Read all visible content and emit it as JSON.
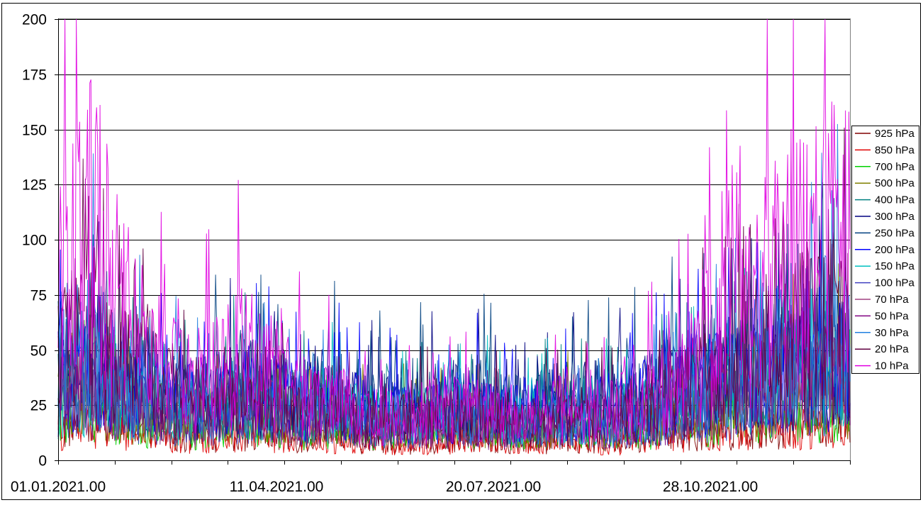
{
  "chart_data": {
    "type": "line",
    "title": "",
    "xlabel": "",
    "ylabel": "",
    "ylim": [
      0,
      200
    ],
    "yticks": [
      0,
      25,
      50,
      75,
      100,
      125,
      150,
      175,
      200
    ],
    "xlim": [
      "01.01.2021.00",
      "31.12.2021.18"
    ],
    "xtick_labels": [
      "01.01.2021.00",
      "11.04.2021.00",
      "20.07.2021.00",
      "28.10.2021.00"
    ],
    "grid": "horizontal",
    "legend_position": "right",
    "x": [
      "01.01.2021.00",
      "15.01.2021.00",
      "29.01.2021.00",
      "12.02.2021.00",
      "26.02.2021.00",
      "12.03.2021.00",
      "26.03.2021.00",
      "09.04.2021.00",
      "23.04.2021.00",
      "07.05.2021.00",
      "21.05.2021.00",
      "04.06.2021.00",
      "18.06.2021.00",
      "02.07.2021.00",
      "16.07.2021.00",
      "30.07.2021.00",
      "13.08.2021.00",
      "27.08.2021.00",
      "10.09.2021.00",
      "24.09.2021.00",
      "08.10.2021.00",
      "22.10.2021.00",
      "05.11.2021.00",
      "19.11.2021.00",
      "03.12.2021.00",
      "17.12.2021.00",
      "31.12.2021.00"
    ],
    "series": [
      {
        "name": "925 hPa",
        "color": "#800000",
        "values": [
          15,
          18,
          14,
          12,
          10,
          11,
          13,
          12,
          10,
          11,
          9,
          8,
          9,
          10,
          9,
          8,
          9,
          10,
          9,
          10,
          12,
          13,
          14,
          15,
          16,
          17,
          18
        ]
      },
      {
        "name": "850 hPa",
        "color": "#e00000",
        "values": [
          12,
          16,
          13,
          11,
          9,
          10,
          12,
          11,
          9,
          10,
          8,
          8,
          8,
          9,
          8,
          8,
          8,
          9,
          8,
          9,
          11,
          12,
          13,
          14,
          15,
          16,
          17
        ]
      },
      {
        "name": "700 hPa",
        "color": "#00d000",
        "values": [
          20,
          24,
          20,
          18,
          15,
          16,
          19,
          17,
          15,
          16,
          14,
          13,
          14,
          15,
          14,
          13,
          14,
          15,
          14,
          15,
          17,
          19,
          21,
          22,
          24,
          25,
          26
        ]
      },
      {
        "name": "500 hPa",
        "color": "#808000",
        "values": [
          26,
          30,
          25,
          22,
          19,
          20,
          24,
          21,
          19,
          20,
          17,
          16,
          17,
          19,
          18,
          16,
          17,
          19,
          18,
          19,
          22,
          24,
          27,
          28,
          30,
          32,
          33
        ]
      },
      {
        "name": "400 hPa",
        "color": "#008080",
        "values": [
          32,
          36,
          30,
          27,
          23,
          25,
          29,
          26,
          23,
          25,
          21,
          20,
          21,
          23,
          22,
          20,
          21,
          23,
          22,
          24,
          27,
          30,
          33,
          35,
          37,
          39,
          40
        ]
      },
      {
        "name": "300 hPa",
        "color": "#000080",
        "values": [
          36,
          42,
          35,
          31,
          27,
          29,
          33,
          30,
          27,
          28,
          24,
          23,
          24,
          27,
          25,
          23,
          24,
          27,
          25,
          27,
          31,
          34,
          38,
          40,
          42,
          44,
          45
        ]
      },
      {
        "name": "250 hPa",
        "color": "#004080",
        "values": [
          38,
          44,
          37,
          33,
          28,
          30,
          35,
          32,
          28,
          30,
          26,
          24,
          26,
          28,
          27,
          24,
          26,
          28,
          27,
          29,
          33,
          36,
          40,
          42,
          44,
          46,
          47
        ]
      },
      {
        "name": "200 hPa",
        "color": "#0000ff",
        "values": [
          35,
          40,
          34,
          30,
          26,
          28,
          32,
          29,
          26,
          27,
          23,
          22,
          23,
          25,
          24,
          22,
          23,
          25,
          24,
          26,
          30,
          33,
          36,
          38,
          40,
          42,
          43
        ]
      },
      {
        "name": "150 hPa",
        "color": "#00c0c0",
        "values": [
          30,
          34,
          29,
          26,
          22,
          24,
          27,
          25,
          22,
          23,
          20,
          19,
          20,
          22,
          21,
          19,
          20,
          22,
          21,
          22,
          25,
          28,
          31,
          32,
          34,
          36,
          37
        ]
      },
      {
        "name": "100 hPa",
        "color": "#4040c0",
        "values": [
          28,
          31,
          26,
          23,
          20,
          21,
          24,
          22,
          19,
          20,
          17,
          16,
          17,
          18,
          17,
          16,
          17,
          18,
          17,
          19,
          22,
          25,
          28,
          30,
          32,
          34,
          35
        ]
      },
      {
        "name": "70 hPa",
        "color": "#a04080",
        "values": [
          32,
          36,
          28,
          24,
          20,
          21,
          24,
          22,
          18,
          19,
          16,
          15,
          16,
          17,
          16,
          15,
          16,
          17,
          16,
          18,
          22,
          26,
          30,
          34,
          36,
          38,
          40
        ]
      },
      {
        "name": "50 hPa",
        "color": "#800080",
        "values": [
          35,
          40,
          30,
          26,
          21,
          22,
          25,
          23,
          19,
          20,
          16,
          15,
          16,
          17,
          16,
          15,
          16,
          17,
          16,
          18,
          23,
          27,
          32,
          36,
          39,
          42,
          44
        ]
      },
      {
        "name": "30 hPa",
        "color": "#2080e0",
        "values": [
          45,
          55,
          40,
          33,
          26,
          27,
          30,
          28,
          22,
          22,
          18,
          17,
          18,
          19,
          18,
          17,
          18,
          19,
          18,
          20,
          26,
          32,
          38,
          45,
          50,
          55,
          58
        ]
      },
      {
        "name": "20 hPa",
        "color": "#600040",
        "values": [
          48,
          62,
          44,
          36,
          28,
          29,
          33,
          30,
          24,
          24,
          19,
          18,
          19,
          20,
          19,
          18,
          19,
          20,
          19,
          22,
          28,
          34,
          42,
          50,
          56,
          60,
          62
        ]
      },
      {
        "name": "10 hPa",
        "color": "#e000e0",
        "values": [
          80,
          110,
          70,
          48,
          36,
          38,
          48,
          40,
          30,
          28,
          22,
          20,
          22,
          23,
          22,
          20,
          22,
          23,
          22,
          26,
          36,
          48,
          62,
          78,
          88,
          95,
          98
        ]
      }
    ]
  }
}
